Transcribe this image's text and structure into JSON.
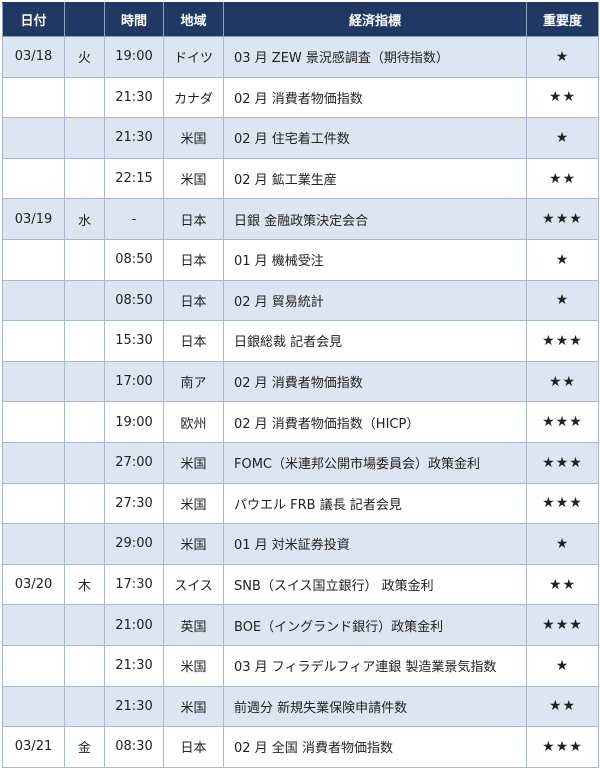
{
  "headers": {
    "date": "日付",
    "weekday": "",
    "time": "時間",
    "region": "地域",
    "indicator": "経済指標",
    "importance": "重要度"
  },
  "colors": {
    "header_bg": "#1f3864",
    "alt_row": "#dce6f2"
  },
  "rows": [
    {
      "date": "03/18",
      "weekday": "火",
      "time": "19:00",
      "region": "ドイツ",
      "indicator": "03 月 ZEW 景況感調査（期待指数）",
      "importance": "★"
    },
    {
      "date": "",
      "weekday": "",
      "time": "21:30",
      "region": "カナダ",
      "indicator": "02 月 消費者物価指数",
      "importance": "★★"
    },
    {
      "date": "",
      "weekday": "",
      "time": "21:30",
      "region": "米国",
      "indicator": "02 月 住宅着工件数",
      "importance": "★"
    },
    {
      "date": "",
      "weekday": "",
      "time": "22:15",
      "region": "米国",
      "indicator": "02 月 鉱工業生産",
      "importance": "★★"
    },
    {
      "date": "03/19",
      "weekday": "水",
      "time": "-",
      "region": "日本",
      "indicator": "日銀 金融政策決定会合",
      "importance": "★★★"
    },
    {
      "date": "",
      "weekday": "",
      "time": "08:50",
      "region": "日本",
      "indicator": "01 月 機械受注",
      "importance": "★"
    },
    {
      "date": "",
      "weekday": "",
      "time": "08:50",
      "region": "日本",
      "indicator": "02 月 貿易統計",
      "importance": "★"
    },
    {
      "date": "",
      "weekday": "",
      "time": "15:30",
      "region": "日本",
      "indicator": "日銀総裁 記者会見",
      "importance": "★★★"
    },
    {
      "date": "",
      "weekday": "",
      "time": "17:00",
      "region": "南ア",
      "indicator": "02 月 消費者物価指数",
      "importance": "★★"
    },
    {
      "date": "",
      "weekday": "",
      "time": "19:00",
      "region": "欧州",
      "indicator": "02 月 消費者物価指数（HICP）",
      "importance": "★★★"
    },
    {
      "date": "",
      "weekday": "",
      "time": "27:00",
      "region": "米国",
      "indicator": "FOMC（米連邦公開市場委員会）政策金利",
      "importance": "★★★"
    },
    {
      "date": "",
      "weekday": "",
      "time": "27:30",
      "region": "米国",
      "indicator": "パウエル FRB 議長 記者会見",
      "importance": "★★★"
    },
    {
      "date": "",
      "weekday": "",
      "time": "29:00",
      "region": "米国",
      "indicator": "01 月 対米証券投資",
      "importance": "★"
    },
    {
      "date": "03/20",
      "weekday": "木",
      "time": "17:30",
      "region": "スイス",
      "indicator": "SNB（スイス国立銀行） 政策金利",
      "importance": "★★"
    },
    {
      "date": "",
      "weekday": "",
      "time": "21:00",
      "region": "英国",
      "indicator": "BOE（イングランド銀行）政策金利",
      "importance": "★★★"
    },
    {
      "date": "",
      "weekday": "",
      "time": "21:30",
      "region": "米国",
      "indicator": "03 月 フィラデルフィア連銀 製造業景気指数",
      "importance": "★"
    },
    {
      "date": "",
      "weekday": "",
      "time": "21:30",
      "region": "米国",
      "indicator": "前週分 新規失業保険申請件数",
      "importance": "★★"
    },
    {
      "date": "03/21",
      "weekday": "金",
      "time": "08:30",
      "region": "日本",
      "indicator": "02 月 全国 消費者物価指数",
      "importance": "★★★"
    }
  ]
}
